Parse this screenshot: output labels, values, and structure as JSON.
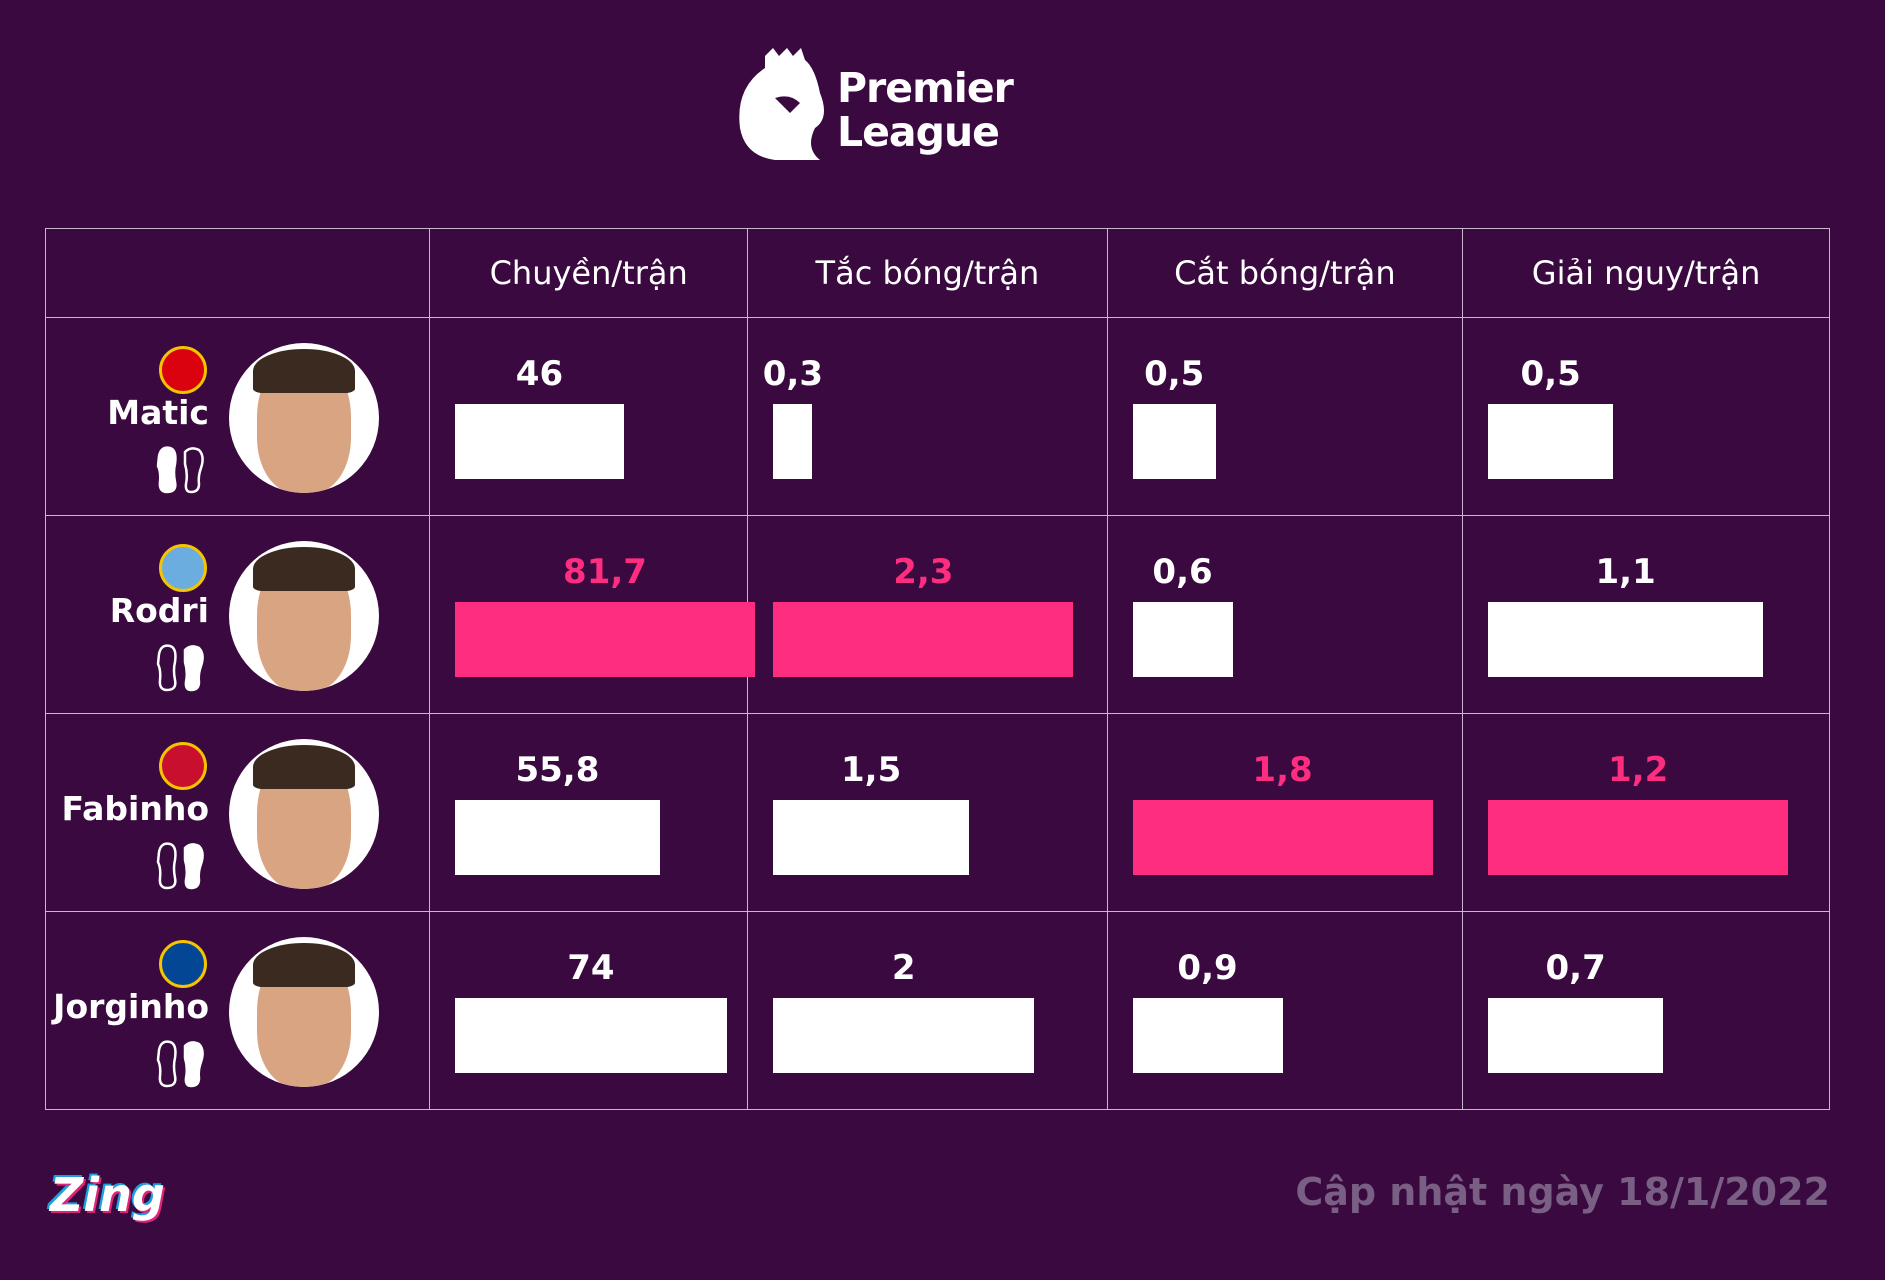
{
  "header": {
    "logo_line1": "Premier",
    "logo_line2": "League"
  },
  "chart_data": {
    "type": "table",
    "title": "Premier League",
    "columns": [
      "Chuyền/trận",
      "Tắc bóng/trận",
      "Cắt bóng/trận",
      "Giải nguy/trận"
    ],
    "rows": [
      {
        "player": "Matic",
        "club": "Manchester United",
        "crest_color": "#da020e",
        "foot": "left",
        "values": [
          "46",
          "0,3",
          "0,5",
          "0,5"
        ],
        "numeric": [
          46,
          0.3,
          0.5,
          0.5
        ]
      },
      {
        "player": "Rodri",
        "club": "Manchester City",
        "crest_color": "#6caddf",
        "foot": "right",
        "values": [
          "81,7",
          "2,3",
          "0,6",
          "1,1"
        ],
        "numeric": [
          81.7,
          2.3,
          0.6,
          1.1
        ]
      },
      {
        "player": "Fabinho",
        "club": "Liverpool",
        "crest_color": "#c8102e",
        "foot": "right",
        "values": [
          "55,8",
          "1,5",
          "1,8",
          "1,2"
        ],
        "numeric": [
          55.8,
          1.5,
          1.8,
          1.2
        ]
      },
      {
        "player": "Jorginho",
        "club": "Chelsea",
        "crest_color": "#034694",
        "foot": "right",
        "values": [
          "74",
          "2",
          "0,9",
          "0,7"
        ],
        "numeric": [
          74,
          2,
          0.9,
          0.7
        ]
      }
    ],
    "highlight_color": "#ff2d80"
  },
  "footer": {
    "brand": "Zing",
    "updated": "Cập nhật ngày 18/1/2022"
  }
}
